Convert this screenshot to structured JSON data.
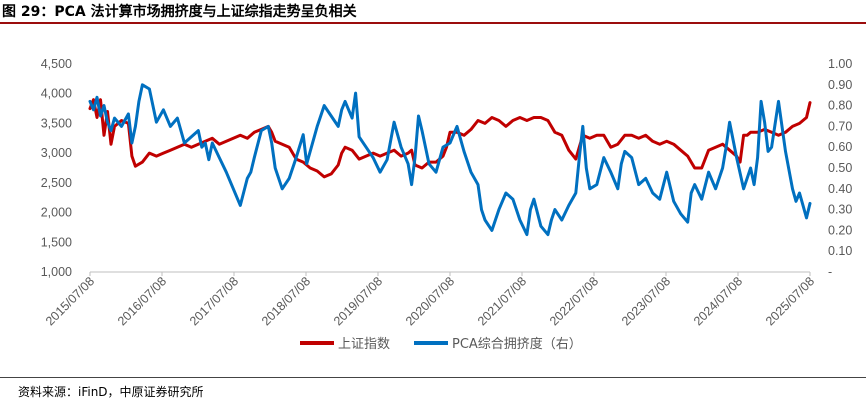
{
  "header": {
    "title": "图 29：PCA 法计算市场拥挤度与上证综指走势呈负相关"
  },
  "footer": {
    "source": "资料来源：iFinD，中原证券研究所"
  },
  "colors": {
    "title_rule": "#9b0d0d",
    "series_index": "#c00000",
    "series_pca": "#0070c0",
    "axis": "#bfbfbf",
    "tick_text": "#595959"
  },
  "chart_data": {
    "type": "line",
    "title": "",
    "x_tick_labels": [
      "2015/07/08",
      "2016/07/08",
      "2017/07/08",
      "2018/07/08",
      "2019/07/08",
      "2020/07/08",
      "2021/07/08",
      "2022/07/08",
      "2023/07/08",
      "2024/07/08",
      "2025/07/08"
    ],
    "x_range": [
      2015.45,
      2025.75
    ],
    "left_axis": {
      "min": 1000,
      "max": 4500,
      "ticks": [
        1000,
        1500,
        2000,
        2500,
        3000,
        3500,
        4000,
        4500
      ],
      "tick_labels": [
        "1,000",
        "1,500",
        "2,000",
        "2,500",
        "3,000",
        "3,500",
        "4,000",
        "4,500"
      ]
    },
    "right_axis": {
      "min": 0,
      "max": 1.0,
      "ticks": [
        0,
        0.1,
        0.2,
        0.3,
        0.4,
        0.5,
        0.6,
        0.7,
        0.8,
        0.9,
        1.0
      ],
      "tick_labels": [
        "-",
        "0.10",
        "0.20",
        "0.30",
        "0.40",
        "0.50",
        "0.60",
        "0.70",
        "0.80",
        "0.90",
        "1.00"
      ]
    },
    "grid": false,
    "legend_position": "bottom-center",
    "series": [
      {
        "name": "上证指数",
        "axis": "left",
        "x": [
          2015.45,
          2015.5,
          2015.55,
          2015.6,
          2015.65,
          2015.7,
          2015.75,
          2015.8,
          2015.9,
          2016.0,
          2016.05,
          2016.1,
          2016.2,
          2016.3,
          2016.4,
          2016.5,
          2016.6,
          2016.7,
          2016.8,
          2016.9,
          2017.0,
          2017.1,
          2017.2,
          2017.3,
          2017.4,
          2017.5,
          2017.6,
          2017.7,
          2017.8,
          2017.9,
          2018.0,
          2018.05,
          2018.1,
          2018.2,
          2018.3,
          2018.4,
          2018.5,
          2018.6,
          2018.7,
          2018.8,
          2018.9,
          2019.0,
          2019.05,
          2019.1,
          2019.2,
          2019.3,
          2019.4,
          2019.5,
          2019.6,
          2019.7,
          2019.8,
          2019.9,
          2020.0,
          2020.05,
          2020.1,
          2020.2,
          2020.3,
          2020.4,
          2020.5,
          2020.55,
          2020.6,
          2020.7,
          2020.8,
          2020.9,
          2021.0,
          2021.1,
          2021.2,
          2021.3,
          2021.4,
          2021.5,
          2021.6,
          2021.7,
          2021.8,
          2021.9,
          2022.0,
          2022.1,
          2022.2,
          2022.3,
          2022.4,
          2022.5,
          2022.6,
          2022.7,
          2022.8,
          2022.9,
          2023.0,
          2023.1,
          2023.2,
          2023.3,
          2023.4,
          2023.5,
          2023.6,
          2023.7,
          2023.8,
          2023.9,
          2024.0,
          2024.05,
          2024.1,
          2024.2,
          2024.3,
          2024.4,
          2024.5,
          2024.6,
          2024.7,
          2024.75,
          2024.8,
          2024.85,
          2024.9,
          2025.0,
          2025.1,
          2025.2,
          2025.3,
          2025.4,
          2025.5,
          2025.6,
          2025.7,
          2025.75
        ],
        "values": [
          3750,
          3900,
          3600,
          3900,
          3300,
          3700,
          3150,
          3450,
          3550,
          3500,
          2950,
          2780,
          2850,
          3000,
          2950,
          3000,
          3050,
          3100,
          3150,
          3100,
          3150,
          3200,
          3250,
          3150,
          3200,
          3250,
          3300,
          3250,
          3350,
          3400,
          3450,
          3350,
          3200,
          3150,
          3100,
          2900,
          2850,
          2750,
          2700,
          2600,
          2650,
          2800,
          3000,
          3100,
          3050,
          2900,
          2950,
          3000,
          2950,
          3000,
          3050,
          2950,
          3000,
          3050,
          2800,
          2750,
          2850,
          2850,
          2950,
          3100,
          3350,
          3350,
          3300,
          3400,
          3550,
          3500,
          3600,
          3550,
          3450,
          3550,
          3600,
          3550,
          3600,
          3600,
          3550,
          3350,
          3300,
          3050,
          2900,
          3300,
          3250,
          3300,
          3300,
          3100,
          3150,
          3300,
          3300,
          3250,
          3300,
          3200,
          3150,
          3200,
          3150,
          3050,
          2950,
          2850,
          2750,
          2750,
          3050,
          3100,
          3150,
          3050,
          2950,
          2850,
          3300,
          3300,
          3350,
          3350,
          3400,
          3350,
          3300,
          3350,
          3450,
          3500,
          3600,
          3850
        ]
      },
      {
        "name": "PCA综合拥挤度（右）",
        "axis": "right",
        "x": [
          2015.45,
          2015.5,
          2015.55,
          2015.6,
          2015.65,
          2015.7,
          2015.75,
          2015.8,
          2015.9,
          2016.0,
          2016.05,
          2016.1,
          2016.15,
          2016.2,
          2016.3,
          2016.4,
          2016.5,
          2016.6,
          2016.7,
          2016.8,
          2016.9,
          2017.0,
          2017.05,
          2017.1,
          2017.15,
          2017.2,
          2017.3,
          2017.4,
          2017.5,
          2017.6,
          2017.7,
          2017.75,
          2017.8,
          2017.9,
          2018.0,
          2018.05,
          2018.1,
          2018.2,
          2018.3,
          2018.4,
          2018.5,
          2018.55,
          2018.6,
          2018.7,
          2018.8,
          2018.9,
          2019.0,
          2019.05,
          2019.1,
          2019.2,
          2019.25,
          2019.3,
          2019.4,
          2019.5,
          2019.6,
          2019.7,
          2019.8,
          2019.9,
          2020.0,
          2020.05,
          2020.1,
          2020.15,
          2020.2,
          2020.3,
          2020.4,
          2020.5,
          2020.6,
          2020.7,
          2020.8,
          2020.9,
          2021.0,
          2021.05,
          2021.1,
          2021.2,
          2021.3,
          2021.4,
          2021.5,
          2021.6,
          2021.7,
          2021.75,
          2021.8,
          2021.9,
          2022.0,
          2022.05,
          2022.1,
          2022.2,
          2022.3,
          2022.4,
          2022.45,
          2022.5,
          2022.55,
          2022.6,
          2022.7,
          2022.8,
          2022.9,
          2023.0,
          2023.05,
          2023.1,
          2023.2,
          2023.3,
          2023.4,
          2023.5,
          2023.6,
          2023.7,
          2023.8,
          2023.9,
          2024.0,
          2024.05,
          2024.1,
          2024.2,
          2024.3,
          2024.4,
          2024.5,
          2024.55,
          2024.6,
          2024.7,
          2024.8,
          2024.9,
          2024.95,
          2025.0,
          2025.05,
          2025.1,
          2025.15,
          2025.2,
          2025.3,
          2025.4,
          2025.5,
          2025.55,
          2025.6,
          2025.7,
          2025.75
        ],
        "values": [
          0.82,
          0.78,
          0.84,
          0.75,
          0.8,
          0.72,
          0.68,
          0.74,
          0.7,
          0.76,
          0.62,
          0.7,
          0.82,
          0.9,
          0.88,
          0.72,
          0.78,
          0.7,
          0.74,
          0.62,
          0.65,
          0.68,
          0.6,
          0.62,
          0.54,
          0.62,
          0.55,
          0.48,
          0.4,
          0.32,
          0.45,
          0.48,
          0.55,
          0.68,
          0.7,
          0.62,
          0.5,
          0.4,
          0.45,
          0.55,
          0.66,
          0.52,
          0.58,
          0.7,
          0.8,
          0.75,
          0.7,
          0.78,
          0.82,
          0.74,
          0.86,
          0.65,
          0.6,
          0.55,
          0.48,
          0.54,
          0.72,
          0.6,
          0.52,
          0.42,
          0.55,
          0.75,
          0.68,
          0.52,
          0.48,
          0.6,
          0.62,
          0.7,
          0.58,
          0.48,
          0.42,
          0.3,
          0.25,
          0.2,
          0.3,
          0.38,
          0.35,
          0.25,
          0.18,
          0.3,
          0.35,
          0.22,
          0.18,
          0.25,
          0.3,
          0.25,
          0.32,
          0.38,
          0.55,
          0.7,
          0.5,
          0.4,
          0.42,
          0.55,
          0.48,
          0.4,
          0.52,
          0.58,
          0.55,
          0.42,
          0.45,
          0.38,
          0.35,
          0.48,
          0.34,
          0.28,
          0.24,
          0.38,
          0.42,
          0.35,
          0.48,
          0.4,
          0.5,
          0.6,
          0.72,
          0.55,
          0.4,
          0.5,
          0.42,
          0.55,
          0.82,
          0.72,
          0.58,
          0.6,
          0.82,
          0.58,
          0.4,
          0.34,
          0.38,
          0.26,
          0.33
        ]
      }
    ]
  }
}
